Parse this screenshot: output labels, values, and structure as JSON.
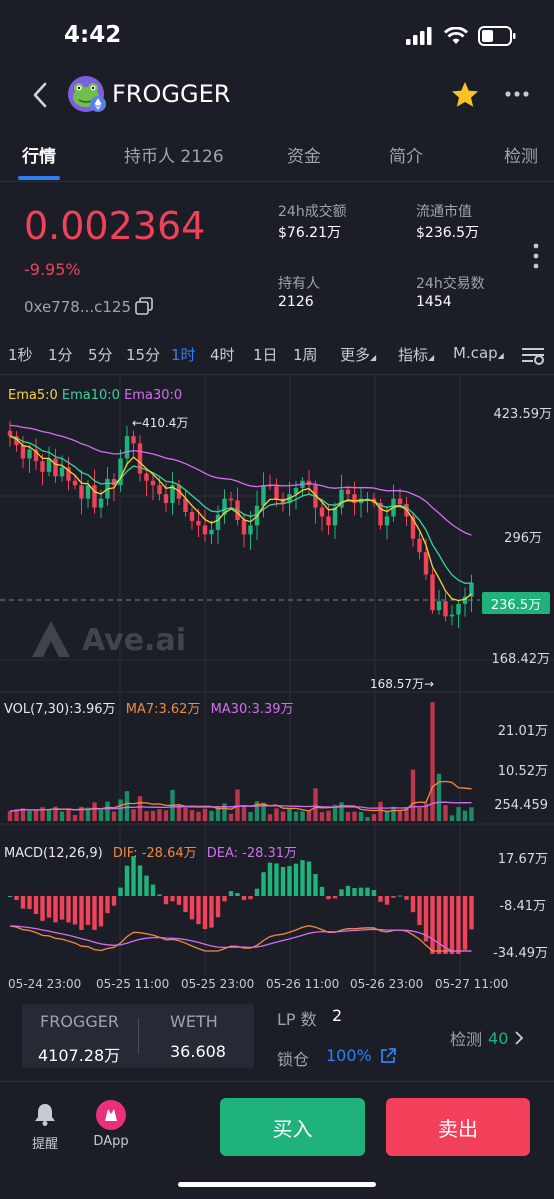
{
  "status": {
    "time": "4:42"
  },
  "header": {
    "title": "FROGGER"
  },
  "tabs": [
    {
      "label": "行情"
    },
    {
      "label": "持币人 2126"
    },
    {
      "label": "资金"
    },
    {
      "label": "简介"
    },
    {
      "label": "检测"
    }
  ],
  "token": {
    "price": "0.002364",
    "change": "-9.95%",
    "address": "0xe778...c125"
  },
  "stats": {
    "volume_24h_label": "24h成交额",
    "volume_24h_value": "$76.21万",
    "market_cap_label": "流通市值",
    "market_cap_value": "$236.5万",
    "holders_label": "持有人",
    "holders_value": "2126",
    "tx_24h_label": "24h交易数",
    "tx_24h_value": "1454"
  },
  "intervals": {
    "items": [
      "1秒",
      "1分",
      "5分",
      "15分",
      "1时",
      "4时",
      "1日",
      "1周"
    ],
    "active": "1时",
    "more": "更多",
    "indicators": "指标",
    "mcap": "M.cap"
  },
  "colors": {
    "up": "#1fb27a",
    "down": "#f04258",
    "ema5": "#f5d536",
    "ema10": "#36d49a",
    "ema30": "#d36ef0",
    "accent": "#2f7ef5"
  },
  "chart_data": [
    {
      "type": "candlestick",
      "legend": [
        "Ema5:0",
        "Ema10:0",
        "Ema30:0"
      ],
      "y_ticks": [
        "423.59万",
        "296万",
        "168.42万"
      ],
      "current_price_label": "236.5万",
      "annotation_high": "←410.4万",
      "annotation_low": "168.57万→",
      "watermark": "Ave.ai",
      "ylim": [
        120,
        445
      ],
      "closes": [
        400,
        390,
        375,
        385,
        372,
        360,
        375,
        355,
        365,
        350,
        345,
        330,
        345,
        320,
        330,
        352,
        345,
        375,
        400,
        392,
        358,
        350,
        345,
        335,
        325,
        345,
        330,
        315,
        305,
        300,
        290,
        295,
        312,
        330,
        328,
        306,
        290,
        300,
        322,
        345,
        344,
        330,
        325,
        335,
        342,
        350,
        345,
        320,
        310,
        300,
        320,
        340,
        335,
        325,
        330,
        330,
        325,
        300,
        310,
        330,
        324,
        310,
        285,
        270,
        245,
        205,
        215,
        198,
        200,
        212,
        220,
        236
      ]
    },
    {
      "type": "bar",
      "legend": [
        "VOL(7,30):3.96万",
        "MA7:3.62万",
        "MA30:3.39万"
      ],
      "y_ticks": [
        "21.01万",
        "10.52万",
        "254.459"
      ]
    },
    {
      "type": "bar",
      "legend": [
        "MACD(12,26,9)",
        "DIF: -28.64万",
        "DEA: -28.31万"
      ],
      "y_ticks": [
        "17.67万",
        "-8.41万",
        "-34.49万"
      ]
    }
  ],
  "time_axis": [
    "05-24 23:00",
    "05-25 11:00",
    "05-25 23:00",
    "05-26 11:00",
    "05-26 23:00",
    "05-27 11:00"
  ],
  "pair": {
    "token_a": "FROGGER",
    "token_a_amount": "4107.28万",
    "token_b": "WETH",
    "token_b_amount": "36.608"
  },
  "lp": {
    "count_label": "LP 数",
    "count_value": "2",
    "lock_label": "锁仓",
    "lock_value": "100%",
    "check_label": "检测",
    "check_value": "40"
  },
  "bottom": {
    "alert_label": "提醒",
    "dapp_label": "DApp",
    "buy_label": "买入",
    "sell_label": "卖出"
  }
}
